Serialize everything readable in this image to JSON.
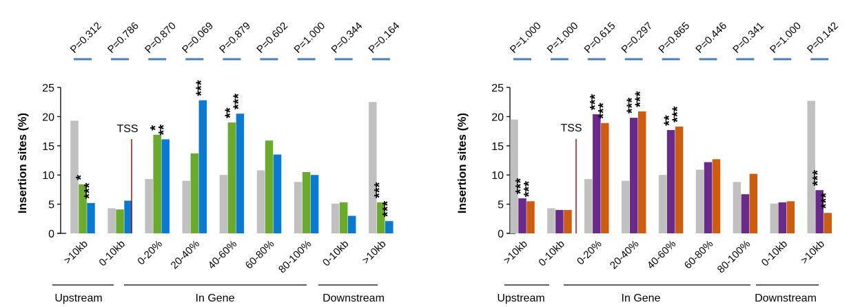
{
  "chart_data": [
    {
      "type": "bar",
      "ylabel": "Insertion sites (%)",
      "ylim": [
        0,
        25
      ],
      "yticks": [
        0,
        5,
        10,
        15,
        20,
        25
      ],
      "categories": [
        ">10kb",
        "0-10kb",
        "0-20%",
        "20-40%",
        "40-60%",
        "60-80%",
        "80-100%",
        "0-10kb",
        ">10kb"
      ],
      "series": [
        {
          "color": "#c0c0c0",
          "values": [
            19.3,
            4.3,
            9.3,
            9.0,
            10.0,
            10.8,
            8.8,
            5.1,
            22.5
          ]
        },
        {
          "color": "#6aab2e",
          "values": [
            8.4,
            4.1,
            16.9,
            13.7,
            19.0,
            15.9,
            10.5,
            5.3,
            5.3
          ]
        },
        {
          "color": "#0a7ad1",
          "values": [
            5.2,
            5.6,
            16.1,
            22.8,
            20.5,
            13.5,
            10.0,
            3.0,
            2.1
          ]
        }
      ],
      "stars": [
        [
          "",
          "*",
          "***"
        ],
        [
          "",
          "",
          ""
        ],
        [
          "",
          "*",
          "**"
        ],
        [
          "",
          "",
          "***"
        ],
        [
          "",
          "**",
          "***"
        ],
        [
          "",
          "",
          ""
        ],
        [
          "",
          "",
          ""
        ],
        [
          "",
          "",
          ""
        ],
        [
          "",
          "***",
          "***"
        ]
      ],
      "pvalues": [
        "P=0.312",
        "P=0.786",
        "P=0.870",
        "P=0.069",
        "P=0.879",
        "P=0.602",
        "P=1.000",
        "P=0.344",
        "P=0.164"
      ],
      "tss_label": "TSS",
      "groups": [
        "Upstream",
        "In Gene",
        "Downstream"
      ]
    },
    {
      "type": "bar",
      "ylabel": "Insertion sites (%)",
      "ylim": [
        0,
        25
      ],
      "yticks": [
        0,
        5,
        10,
        15,
        20,
        25
      ],
      "categories": [
        ">10kb",
        "0-10kb",
        "0-20%",
        "20-40%",
        "40-60%",
        "60-80%",
        "80-100%",
        "0-10kb",
        ">10kb"
      ],
      "series": [
        {
          "color": "#c0c0c0",
          "values": [
            19.5,
            4.3,
            9.3,
            9.0,
            10.0,
            10.9,
            8.8,
            5.1,
            22.7
          ]
        },
        {
          "color": "#6a2a8c",
          "values": [
            6.0,
            4.0,
            20.4,
            19.8,
            17.7,
            12.2,
            6.7,
            5.3,
            7.4
          ]
        },
        {
          "color": "#cc5c0f",
          "values": [
            5.5,
            4.0,
            18.9,
            20.9,
            18.3,
            12.7,
            10.2,
            5.5,
            3.5
          ]
        }
      ],
      "stars": [
        [
          "",
          "***",
          "***"
        ],
        [
          "",
          "",
          ""
        ],
        [
          "",
          "***",
          "***"
        ],
        [
          "",
          "***",
          "***"
        ],
        [
          "",
          "**",
          "***"
        ],
        [
          "",
          "",
          ""
        ],
        [
          "",
          "",
          ""
        ],
        [
          "",
          "",
          ""
        ],
        [
          "",
          "***",
          "***"
        ]
      ],
      "pvalues": [
        "P=1.000",
        "P=1.000",
        "P=0.615",
        "P=0.297",
        "P=0.865",
        "P=0.446",
        "P=0.341",
        "P=1.000",
        "P=0.142"
      ],
      "tss_label": "TSS",
      "groups": [
        "Upstream",
        "In Gene",
        "Downstream"
      ]
    }
  ]
}
